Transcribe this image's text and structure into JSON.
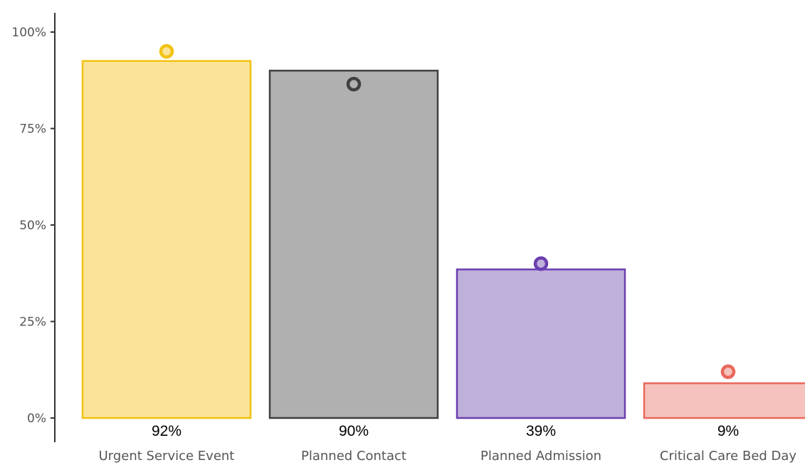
{
  "chart_data": {
    "type": "bar",
    "title": "",
    "xlabel": "",
    "ylabel": "",
    "ylim": [
      0,
      1
    ],
    "y_ticks": [
      {
        "value": 0,
        "label": "0%"
      },
      {
        "value": 0.25,
        "label": "25%"
      },
      {
        "value": 0.5,
        "label": "50%"
      },
      {
        "value": 0.75,
        "label": "75%"
      },
      {
        "value": 1,
        "label": "100%"
      }
    ],
    "grid": false,
    "categories": [
      "Urgent Service Event",
      "Planned Contact",
      "Planned Admission",
      "Critical Care Bed Day"
    ],
    "values": [
      0.925,
      0.9,
      0.385,
      0.09
    ],
    "value_labels": [
      "92%",
      "90%",
      "39%",
      "9%"
    ],
    "markers": [
      0.95,
      0.865,
      0.4,
      0.12
    ],
    "colors": {
      "fill": [
        "#fbe399",
        "#b0b0b0",
        "#bfafdb",
        "#f5c2bd"
      ],
      "stroke": [
        "#f2c211",
        "#404040",
        "#6a3fb0",
        "#e8685b"
      ]
    }
  }
}
